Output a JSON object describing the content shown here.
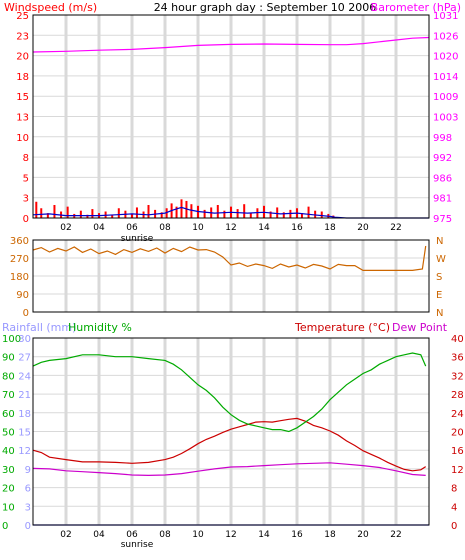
{
  "colors": {
    "wind": "#ff0000",
    "gust": "#cc0000",
    "wind_avg": "#0000cc",
    "barometer": "#ff00ff",
    "direction": "#cc6600",
    "rain": "#9999ff",
    "humidity": "#00aa00",
    "temperature": "#cc0000",
    "dewpoint": "#cc00cc",
    "grid": "#d9d9d9",
    "frame": "#000000"
  },
  "header": {
    "title": "24 hour graph day : September 10 2006",
    "windspeed_label": "Windspeed (m/s)",
    "barometer_label": "Barometer (hPa)"
  },
  "panel3": {
    "rainfall_label": "Rainfall (mm)",
    "humidity_label": "Humidity %",
    "temperature_label": "Temperature (°C)",
    "dewpoint_label": "Dew Point"
  },
  "sunrise_label": "sunrise",
  "chart_data": [
    {
      "id": "wind_baro",
      "type": "line",
      "title": "24 hour graph day : September 10 2006",
      "x_ticks": [
        "02",
        "04",
        "06",
        "08",
        "10",
        "12",
        "14",
        "16",
        "18",
        "20",
        "22"
      ],
      "x_tick_hours": [
        2,
        4,
        6,
        8,
        10,
        12,
        14,
        16,
        18,
        20,
        22
      ],
      "xlim": [
        0,
        24
      ],
      "left_axis": {
        "label": "Windspeed (m/s)",
        "ticks": [
          "0",
          "3",
          "5",
          "8",
          "10",
          "13",
          "15",
          "18",
          "20",
          "23",
          "25"
        ],
        "ylim": [
          0,
          25
        ]
      },
      "right_axis": {
        "label": "Barometer (hPa)",
        "ticks": [
          "975",
          "981",
          "986",
          "992",
          "998",
          "1003",
          "1009",
          "1014",
          "1020",
          "1026",
          "1031"
        ],
        "ylim": [
          975,
          1031
        ]
      },
      "series": [
        {
          "name": "Barometer",
          "axis": "right",
          "x": [
            0,
            2,
            4,
            6,
            8,
            10,
            12,
            14,
            16,
            18,
            19,
            20,
            21,
            22,
            23,
            24
          ],
          "values": [
            1020.8,
            1021.0,
            1021.3,
            1021.5,
            1022.0,
            1022.6,
            1022.9,
            1023.0,
            1022.9,
            1022.8,
            1022.8,
            1023.1,
            1023.6,
            1024.1,
            1024.6,
            1024.8
          ]
        },
        {
          "name": "Wind gust",
          "axis": "left",
          "kind": "bars",
          "x": [
            0.2,
            0.5,
            0.9,
            1.3,
            1.7,
            2.1,
            2.5,
            2.9,
            3.3,
            3.6,
            4.0,
            4.4,
            4.8,
            5.2,
            5.6,
            6.0,
            6.3,
            6.7,
            7.0,
            7.4,
            7.8,
            8.1,
            8.4,
            8.7,
            9.0,
            9.3,
            9.6,
            10.0,
            10.4,
            10.8,
            11.2,
            11.6,
            12.0,
            12.4,
            12.8,
            13.2,
            13.6,
            14.0,
            14.4,
            14.8,
            15.2,
            15.6,
            16.0,
            16.3,
            16.7,
            17.1,
            17.5,
            17.9,
            18.2
          ],
          "values": [
            2.0,
            1.2,
            0.6,
            1.6,
            0.8,
            1.4,
            0.5,
            0.9,
            0.4,
            1.1,
            0.6,
            0.8,
            0.4,
            1.2,
            0.9,
            0.5,
            1.3,
            0.8,
            1.6,
            1.0,
            0.7,
            1.2,
            1.8,
            1.4,
            2.3,
            2.1,
            1.7,
            1.5,
            1.0,
            1.3,
            1.6,
            0.9,
            1.4,
            1.1,
            1.7,
            0.6,
            1.2,
            1.5,
            0.8,
            1.3,
            0.7,
            1.0,
            1.2,
            0.6,
            1.4,
            0.9,
            0.8,
            0.5,
            0.3
          ]
        },
        {
          "name": "Wind average",
          "axis": "left",
          "x": [
            0,
            1,
            2,
            3,
            4,
            5,
            6,
            7,
            8,
            8.5,
            9,
            9.5,
            10,
            11,
            12,
            13,
            14,
            15,
            16,
            17,
            18,
            18.3,
            19,
            20,
            21,
            22,
            23,
            24
          ],
          "values": [
            0.4,
            0.5,
            0.3,
            0.3,
            0.3,
            0.4,
            0.5,
            0.4,
            0.6,
            1.0,
            1.3,
            1.0,
            0.8,
            0.6,
            0.7,
            0.6,
            0.7,
            0.5,
            0.6,
            0.4,
            0.2,
            0.1,
            0.0,
            0.0,
            0.0,
            0.0,
            0.0,
            0.0
          ]
        }
      ]
    },
    {
      "id": "direction",
      "type": "line",
      "xlim": [
        0,
        24
      ],
      "left_axis": {
        "ticks": [
          "0",
          "90",
          "180",
          "270",
          "360"
        ],
        "ylim": [
          0,
          360
        ]
      },
      "right_axis": {
        "ticks": [
          "N",
          "E",
          "S",
          "W",
          "N"
        ]
      },
      "series": [
        {
          "name": "Wind direction",
          "x": [
            0,
            0.5,
            1,
            1.5,
            2,
            2.5,
            3,
            3.5,
            4,
            4.5,
            5,
            5.5,
            6,
            6.5,
            7,
            7.5,
            8,
            8.5,
            9,
            9.5,
            10,
            10.5,
            11,
            11.5,
            12,
            12.5,
            13,
            13.5,
            14,
            14.5,
            15,
            15.5,
            16,
            16.5,
            17,
            17.5,
            18,
            18.5,
            19,
            19.5,
            20,
            21,
            22,
            23,
            23.6,
            23.8
          ],
          "values": [
            310,
            322,
            300,
            318,
            305,
            325,
            298,
            315,
            292,
            305,
            288,
            312,
            298,
            316,
            303,
            320,
            295,
            318,
            302,
            325,
            310,
            312,
            300,
            275,
            235,
            245,
            228,
            240,
            232,
            218,
            240,
            225,
            235,
            220,
            238,
            230,
            215,
            238,
            232,
            232,
            208,
            208,
            208,
            208,
            215,
            330
          ]
        }
      ]
    },
    {
      "id": "temp_hum",
      "type": "line",
      "xlim": [
        0,
        24
      ],
      "x_ticks": [
        "02",
        "04",
        "06",
        "08",
        "10",
        "12",
        "14",
        "16",
        "18",
        "20",
        "22"
      ],
      "left_axis_rain": {
        "label": "Rainfall (mm)",
        "ticks": [
          "0",
          "3",
          "6",
          "9",
          "12",
          "15",
          "18",
          "21",
          "24",
          "27",
          "30"
        ],
        "ylim": [
          0,
          30
        ]
      },
      "left_axis_humidity": {
        "label": "Humidity %",
        "ticks": [
          "0",
          "10",
          "20",
          "30",
          "40",
          "50",
          "60",
          "70",
          "80",
          "90",
          "100"
        ],
        "ylim": [
          0,
          100
        ]
      },
      "right_axis": {
        "label": "Temperature (°C)",
        "ticks": [
          "0",
          "4",
          "8",
          "12",
          "16",
          "20",
          "24",
          "28",
          "32",
          "36",
          "40"
        ],
        "ylim": [
          0,
          40
        ]
      },
      "series": [
        {
          "name": "Humidity",
          "axis": "humidity",
          "x": [
            0,
            0.5,
            1,
            2,
            3,
            4,
            5,
            6,
            7,
            8,
            8.5,
            9,
            9.5,
            10,
            10.5,
            11,
            11.5,
            12,
            12.5,
            13,
            13.5,
            14,
            14.5,
            15,
            15.5,
            16,
            16.5,
            17,
            17.5,
            18,
            18.5,
            19,
            19.5,
            20,
            20.5,
            21,
            21.5,
            22,
            22.5,
            23,
            23.5,
            23.8
          ],
          "values": [
            85,
            87,
            88,
            89,
            91,
            91,
            90,
            90,
            89,
            88,
            86,
            83,
            79,
            75,
            72,
            68,
            63,
            59,
            56,
            54,
            53,
            52,
            51,
            51,
            50,
            52,
            55,
            58,
            62,
            67,
            71,
            75,
            78,
            81,
            83,
            86,
            88,
            90,
            91,
            92,
            91,
            85
          ]
        },
        {
          "name": "Temperature",
          "axis": "temperature",
          "x": [
            0,
            0.5,
            1,
            2,
            3,
            4,
            5,
            6,
            7,
            8,
            8.5,
            9,
            9.5,
            10,
            10.5,
            11,
            11.5,
            12,
            12.5,
            13,
            13.5,
            14,
            14.5,
            15,
            15.5,
            16,
            16.5,
            17,
            17.5,
            18,
            18.5,
            19,
            19.5,
            20,
            20.5,
            21,
            21.5,
            22,
            22.5,
            23,
            23.5,
            23.8
          ],
          "values": [
            16.0,
            15.5,
            14.5,
            14.0,
            13.5,
            13.5,
            13.4,
            13.2,
            13.4,
            14.0,
            14.5,
            15.3,
            16.3,
            17.4,
            18.3,
            19.0,
            19.8,
            20.5,
            21.0,
            21.5,
            22.0,
            22.1,
            22.0,
            22.3,
            22.6,
            22.8,
            22.2,
            21.3,
            20.8,
            20.1,
            19.2,
            18.0,
            17.0,
            15.9,
            15.1,
            14.3,
            13.4,
            12.6,
            11.9,
            11.6,
            11.8,
            12.5
          ]
        },
        {
          "name": "Dew Point",
          "axis": "temperature",
          "x": [
            0,
            1,
            2,
            3,
            4,
            5,
            6,
            7,
            8,
            9,
            10,
            11,
            12,
            13,
            14,
            15,
            16,
            17,
            18,
            19,
            20,
            21,
            22,
            23,
            23.8
          ],
          "values": [
            12.1,
            12.0,
            11.6,
            11.4,
            11.2,
            11.0,
            10.7,
            10.6,
            10.7,
            11.0,
            11.5,
            12.0,
            12.4,
            12.5,
            12.7,
            12.9,
            13.1,
            13.2,
            13.3,
            13.0,
            12.7,
            12.3,
            11.6,
            10.8,
            10.6
          ]
        },
        {
          "name": "Rainfall",
          "axis": "rain",
          "x": [
            0,
            24
          ],
          "values": [
            0,
            0
          ]
        }
      ]
    }
  ]
}
